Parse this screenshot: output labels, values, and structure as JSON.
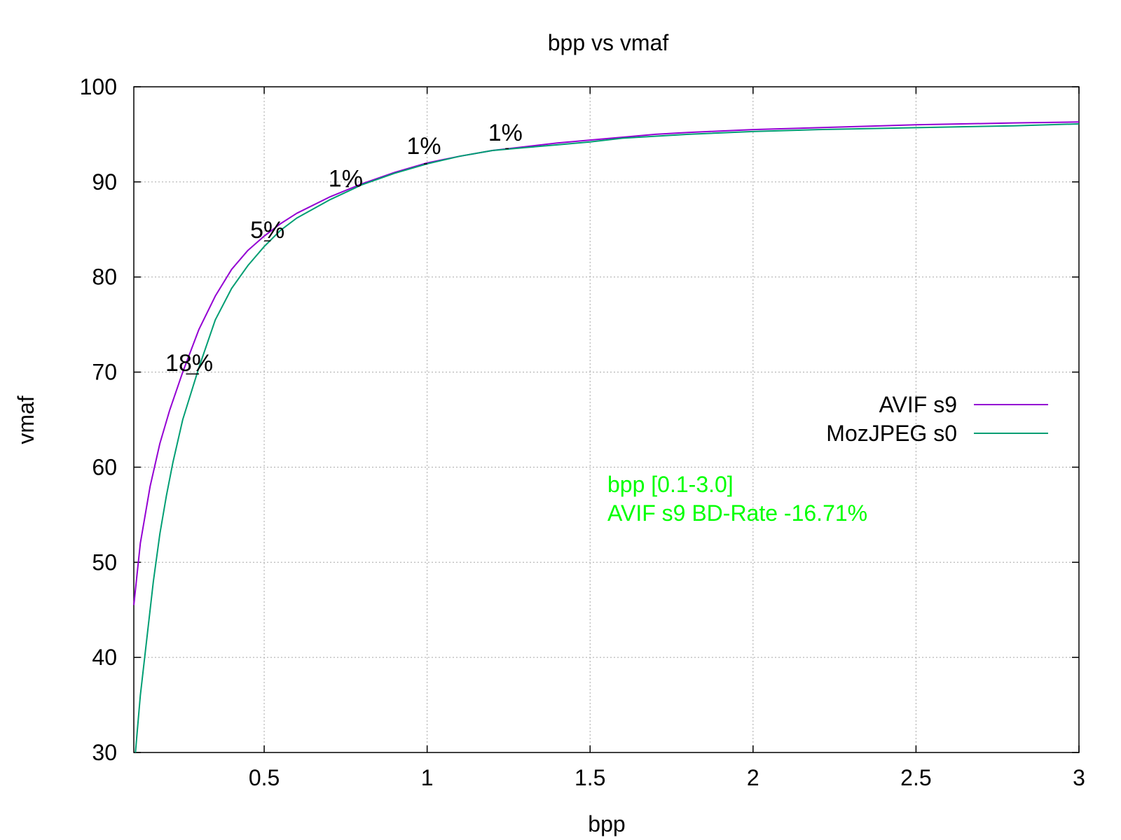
{
  "chart_data": {
    "type": "line",
    "title": "bpp vs vmaf",
    "xlabel": "bpp",
    "ylabel": "vmaf",
    "xlim": [
      0.1,
      3.0
    ],
    "ylim": [
      30,
      100
    ],
    "x_ticks": [
      0.5,
      1,
      1.5,
      2,
      2.5,
      3
    ],
    "x_tick_labels": [
      "0.5",
      "1",
      "1.5",
      "2",
      "2.5",
      "3"
    ],
    "y_ticks": [
      30,
      40,
      50,
      60,
      70,
      80,
      90,
      100
    ],
    "y_tick_labels": [
      "30",
      "40",
      "50",
      "60",
      "70",
      "80",
      "90",
      "100"
    ],
    "grid": true,
    "legend_position": "right",
    "series": [
      {
        "name": "AVIF s9",
        "color": "#9400d3",
        "points": [
          [
            0.1,
            45.5
          ],
          [
            0.12,
            52
          ],
          [
            0.15,
            58
          ],
          [
            0.18,
            62.5
          ],
          [
            0.21,
            66
          ],
          [
            0.25,
            70
          ],
          [
            0.3,
            74.5
          ],
          [
            0.35,
            78
          ],
          [
            0.4,
            80.8
          ],
          [
            0.45,
            82.8
          ],
          [
            0.5,
            84.3
          ],
          [
            0.55,
            85.6
          ],
          [
            0.6,
            86.7
          ],
          [
            0.7,
            88.4
          ],
          [
            0.8,
            89.8
          ],
          [
            0.9,
            91.0
          ],
          [
            1.0,
            92.0
          ],
          [
            1.1,
            92.7
          ],
          [
            1.2,
            93.3
          ],
          [
            1.3,
            93.7
          ],
          [
            1.4,
            94.1
          ],
          [
            1.5,
            94.4
          ],
          [
            1.6,
            94.7
          ],
          [
            1.7,
            95.0
          ],
          [
            1.8,
            95.2
          ],
          [
            2.0,
            95.5
          ],
          [
            2.2,
            95.7
          ],
          [
            2.5,
            96.0
          ],
          [
            2.8,
            96.2
          ],
          [
            3.0,
            96.3
          ]
        ]
      },
      {
        "name": "MozJPEG s0",
        "color": "#009e73",
        "points": [
          [
            0.105,
            30
          ],
          [
            0.12,
            36
          ],
          [
            0.14,
            42
          ],
          [
            0.16,
            48
          ],
          [
            0.18,
            53
          ],
          [
            0.2,
            57
          ],
          [
            0.22,
            60.5
          ],
          [
            0.25,
            65
          ],
          [
            0.3,
            70.5
          ],
          [
            0.35,
            75.5
          ],
          [
            0.4,
            78.8
          ],
          [
            0.45,
            81.2
          ],
          [
            0.5,
            83.2
          ],
          [
            0.55,
            84.9
          ],
          [
            0.6,
            86.2
          ],
          [
            0.7,
            88.1
          ],
          [
            0.8,
            89.7
          ],
          [
            0.9,
            90.9
          ],
          [
            1.0,
            91.9
          ],
          [
            1.1,
            92.7
          ],
          [
            1.2,
            93.3
          ],
          [
            1.3,
            93.6
          ],
          [
            1.4,
            93.9
          ],
          [
            1.5,
            94.2
          ],
          [
            1.6,
            94.6
          ],
          [
            1.8,
            95.0
          ],
          [
            2.0,
            95.3
          ],
          [
            2.2,
            95.5
          ],
          [
            2.5,
            95.7
          ],
          [
            2.8,
            95.9
          ],
          [
            3.0,
            96.1
          ]
        ]
      }
    ],
    "annotations": [
      {
        "text": "18%",
        "x": 0.27,
        "y": 71,
        "x_from": 0.26,
        "x_to": 0.3,
        "y_line": 69.8
      },
      {
        "text": "5%",
        "x": 0.51,
        "y": 85,
        "x_from": 0.5,
        "x_to": 0.52,
        "y_line": 83.8
      },
      {
        "text": "1%",
        "x": 0.75,
        "y": 90.4,
        "x_from": 0.75,
        "x_to": 0.76,
        "y_line": 89.5
      },
      {
        "text": "1%",
        "x": 0.99,
        "y": 93.8,
        "x_from": 0.99,
        "x_to": 1.0,
        "y_line": 91.9
      },
      {
        "text": "1%",
        "x": 1.24,
        "y": 95.2,
        "x_from": 1.24,
        "x_to": 1.25,
        "y_line": 93.5
      }
    ],
    "note": {
      "lines": [
        "bpp [0.1-3.0]",
        "AVIF s9 BD-Rate -16.71%"
      ],
      "color": "#00ff00"
    }
  }
}
